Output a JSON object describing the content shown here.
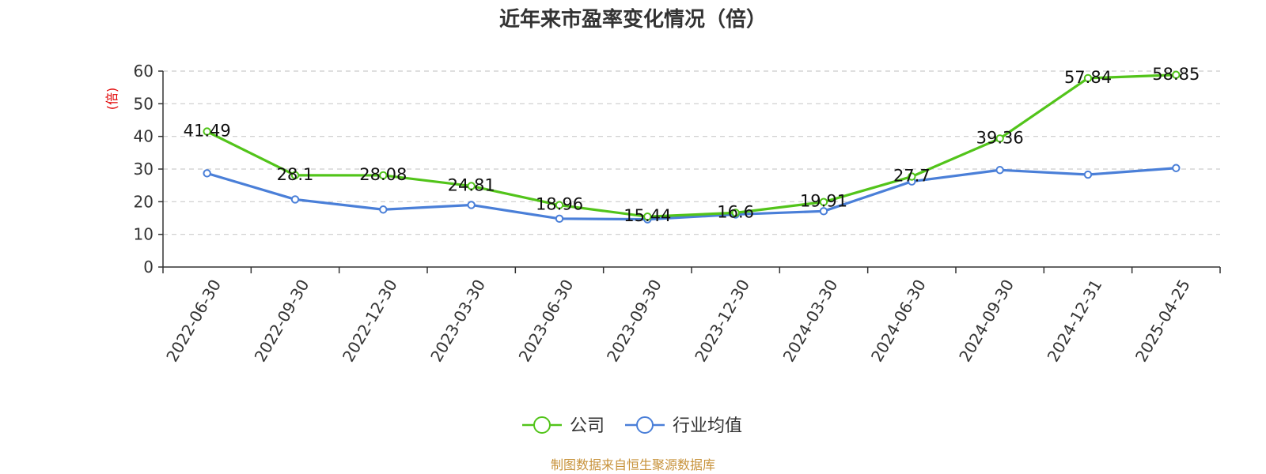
{
  "chart_data": {
    "type": "line",
    "title": "近年来市盈率变化情况（倍）",
    "ylabel": "(倍)",
    "xlabel": "",
    "ylim": [
      0,
      60
    ],
    "yticks": [
      0,
      10,
      20,
      30,
      40,
      50,
      60
    ],
    "grid": true,
    "legend_position": "bottom-center",
    "categories": [
      "2022-06-30",
      "2022-09-30",
      "2022-12-30",
      "2023-03-30",
      "2023-06-30",
      "2023-09-30",
      "2023-12-30",
      "2024-03-30",
      "2024-06-30",
      "2024-09-30",
      "2024-12-31",
      "2025-04-25"
    ],
    "series": [
      {
        "name": "公司",
        "color": "#52c41a",
        "values": [
          41.49,
          28.1,
          28.08,
          24.81,
          18.96,
          15.44,
          16.6,
          19.91,
          27.7,
          39.36,
          57.84,
          58.85
        ],
        "labels": [
          "41.49",
          "28.1",
          "28.08",
          "24.81",
          "18.96",
          "15.44",
          "16.6",
          "19.91",
          "27.7",
          "39.36",
          "57.84",
          "58.85"
        ]
      },
      {
        "name": "行业均值",
        "color": "#4a7fd8",
        "values": [
          28.7,
          20.7,
          17.6,
          19.0,
          14.8,
          14.6,
          16.1,
          17.1,
          26.2,
          29.7,
          28.3,
          30.3
        ]
      }
    ],
    "source": "制图数据来自恒生聚源数据库"
  }
}
